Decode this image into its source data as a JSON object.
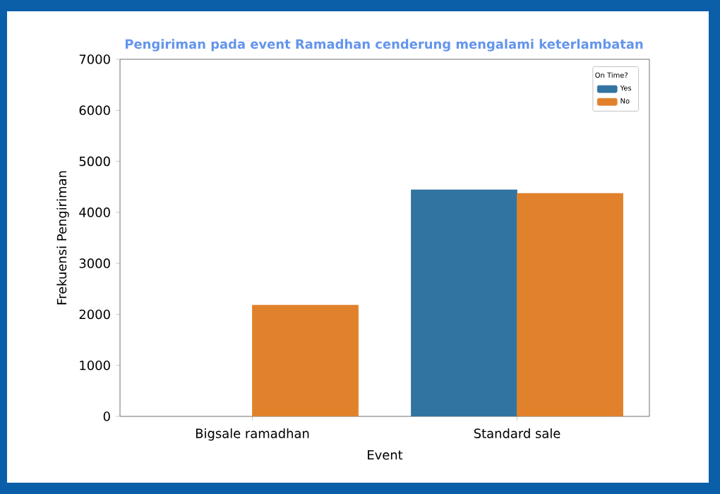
{
  "chart_data": {
    "type": "bar",
    "title": "Pengiriman pada event Ramadhan cenderung mengalami keterlambatan",
    "xlabel": "Event",
    "ylabel": "Frekuensi Pengiriman",
    "legend_title": "On Time?",
    "categories": [
      "Bigsale ramadhan",
      "Standard sale"
    ],
    "series": [
      {
        "name": "Yes",
        "color": "#3274a1",
        "values": [
          null,
          4440
        ]
      },
      {
        "name": "No",
        "color": "#e1812c",
        "values": [
          2180,
          4370
        ]
      }
    ],
    "ylim": [
      0,
      7000
    ],
    "yticks": [
      0,
      1000,
      2000,
      3000,
      4000,
      5000,
      6000,
      7000
    ],
    "legend": "top right"
  }
}
